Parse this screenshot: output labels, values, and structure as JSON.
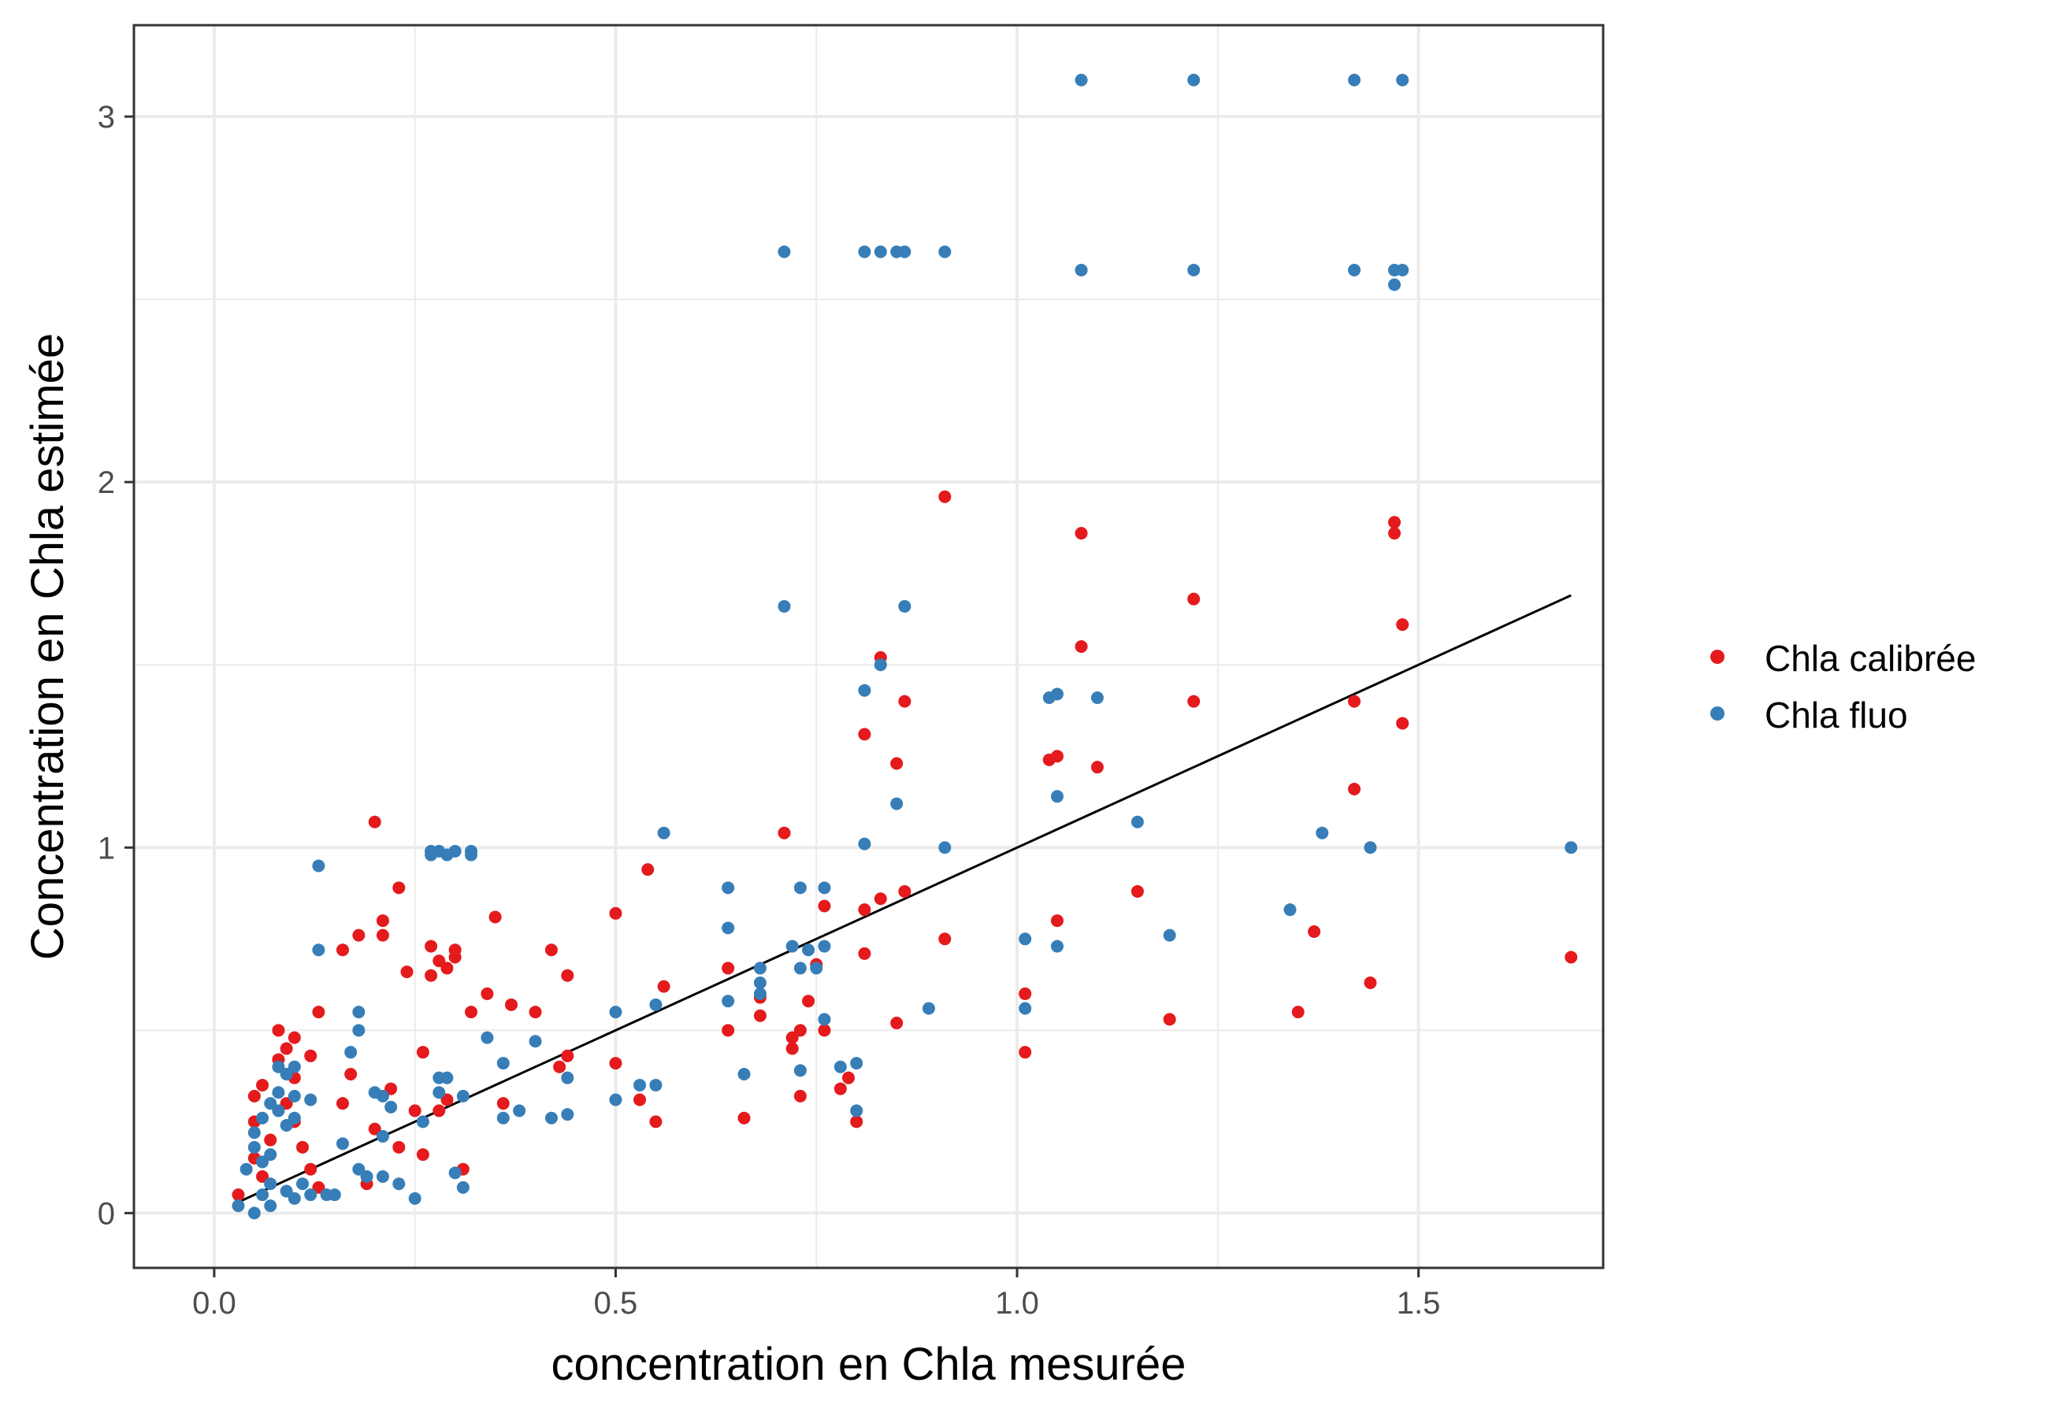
{
  "chart_data": {
    "type": "scatter",
    "xlabel": "concentration en Chla mesurée",
    "ylabel": "Concentration en Chla estimée",
    "xlim": [
      -0.1,
      1.73
    ],
    "ylim": [
      -0.15,
      3.25
    ],
    "x_ticks": [
      0.0,
      0.5,
      1.0,
      1.5
    ],
    "x_tick_labels": [
      "0.0",
      "0.5",
      "1.0",
      "1.5"
    ],
    "y_ticks": [
      0,
      1,
      2,
      3
    ],
    "y_tick_labels": [
      "0",
      "1",
      "2",
      "3"
    ],
    "grid": true,
    "legend_position": "right",
    "series": [
      {
        "name": "Chla calibrée",
        "color": "#e41a1c",
        "points": [
          [
            0.03,
            0.05
          ],
          [
            0.05,
            0.15
          ],
          [
            0.05,
            0.25
          ],
          [
            0.05,
            0.32
          ],
          [
            0.06,
            0.35
          ],
          [
            0.06,
            0.1
          ],
          [
            0.07,
            0.2
          ],
          [
            0.08,
            0.5
          ],
          [
            0.08,
            0.42
          ],
          [
            0.09,
            0.3
          ],
          [
            0.09,
            0.45
          ],
          [
            0.1,
            0.48
          ],
          [
            0.1,
            0.37
          ],
          [
            0.1,
            0.25
          ],
          [
            0.11,
            0.18
          ],
          [
            0.12,
            0.12
          ],
          [
            0.12,
            0.43
          ],
          [
            0.13,
            0.55
          ],
          [
            0.13,
            0.07
          ],
          [
            0.16,
            0.3
          ],
          [
            0.16,
            0.72
          ],
          [
            0.17,
            0.38
          ],
          [
            0.18,
            0.76
          ],
          [
            0.19,
            0.08
          ],
          [
            0.2,
            0.23
          ],
          [
            0.2,
            1.07
          ],
          [
            0.21,
            0.76
          ],
          [
            0.21,
            0.8
          ],
          [
            0.22,
            0.34
          ],
          [
            0.23,
            0.89
          ],
          [
            0.23,
            0.18
          ],
          [
            0.24,
            0.66
          ],
          [
            0.25,
            0.28
          ],
          [
            0.26,
            0.44
          ],
          [
            0.26,
            0.16
          ],
          [
            0.27,
            0.65
          ],
          [
            0.27,
            0.73
          ],
          [
            0.28,
            0.69
          ],
          [
            0.28,
            0.28
          ],
          [
            0.29,
            0.67
          ],
          [
            0.29,
            0.31
          ],
          [
            0.3,
            0.72
          ],
          [
            0.3,
            0.7
          ],
          [
            0.31,
            0.12
          ],
          [
            0.32,
            0.55
          ],
          [
            0.34,
            0.6
          ],
          [
            0.35,
            0.81
          ],
          [
            0.36,
            0.3
          ],
          [
            0.37,
            0.57
          ],
          [
            0.4,
            0.55
          ],
          [
            0.42,
            0.72
          ],
          [
            0.43,
            0.4
          ],
          [
            0.44,
            0.65
          ],
          [
            0.44,
            0.43
          ],
          [
            0.5,
            0.82
          ],
          [
            0.5,
            0.41
          ],
          [
            0.53,
            0.31
          ],
          [
            0.54,
            0.94
          ],
          [
            0.55,
            0.25
          ],
          [
            0.56,
            0.62
          ],
          [
            0.64,
            0.5
          ],
          [
            0.64,
            0.67
          ],
          [
            0.66,
            0.26
          ],
          [
            0.68,
            0.59
          ],
          [
            0.68,
            0.54
          ],
          [
            0.71,
            1.04
          ],
          [
            0.72,
            0.45
          ],
          [
            0.72,
            0.48
          ],
          [
            0.73,
            0.32
          ],
          [
            0.73,
            0.5
          ],
          [
            0.74,
            0.58
          ],
          [
            0.75,
            0.68
          ],
          [
            0.76,
            0.5
          ],
          [
            0.76,
            0.84
          ],
          [
            0.78,
            0.34
          ],
          [
            0.79,
            0.37
          ],
          [
            0.8,
            0.25
          ],
          [
            0.81,
            1.31
          ],
          [
            0.81,
            0.83
          ],
          [
            0.81,
            0.71
          ],
          [
            0.83,
            1.52
          ],
          [
            0.83,
            0.86
          ],
          [
            0.85,
            1.23
          ],
          [
            0.85,
            0.52
          ],
          [
            0.86,
            1.4
          ],
          [
            0.86,
            0.88
          ],
          [
            0.91,
            1.96
          ],
          [
            0.91,
            0.75
          ],
          [
            1.01,
            0.6
          ],
          [
            1.01,
            0.44
          ],
          [
            1.04,
            1.24
          ],
          [
            1.05,
            1.25
          ],
          [
            1.05,
            0.8
          ],
          [
            1.08,
            1.86
          ],
          [
            1.08,
            1.55
          ],
          [
            1.1,
            1.22
          ],
          [
            1.15,
            0.88
          ],
          [
            1.19,
            0.53
          ],
          [
            1.22,
            1.68
          ],
          [
            1.22,
            1.4
          ],
          [
            1.35,
            0.55
          ],
          [
            1.37,
            0.77
          ],
          [
            1.42,
            1.4
          ],
          [
            1.42,
            1.16
          ],
          [
            1.44,
            0.63
          ],
          [
            1.47,
            1.89
          ],
          [
            1.47,
            1.86
          ],
          [
            1.48,
            1.61
          ],
          [
            1.48,
            1.34
          ],
          [
            1.69,
            0.7
          ]
        ]
      },
      {
        "name": "Chla fluo",
        "color": "#377eb8",
        "points": [
          [
            0.03,
            0.02
          ],
          [
            0.04,
            0.12
          ],
          [
            0.05,
            0.0
          ],
          [
            0.05,
            0.18
          ],
          [
            0.05,
            0.22
          ],
          [
            0.06,
            0.14
          ],
          [
            0.06,
            0.26
          ],
          [
            0.06,
            0.05
          ],
          [
            0.07,
            0.08
          ],
          [
            0.07,
            0.16
          ],
          [
            0.07,
            0.3
          ],
          [
            0.07,
            0.02
          ],
          [
            0.08,
            0.4
          ],
          [
            0.08,
            0.33
          ],
          [
            0.08,
            0.28
          ],
          [
            0.09,
            0.38
          ],
          [
            0.09,
            0.24
          ],
          [
            0.09,
            0.06
          ],
          [
            0.1,
            0.4
          ],
          [
            0.1,
            0.32
          ],
          [
            0.1,
            0.26
          ],
          [
            0.1,
            0.04
          ],
          [
            0.11,
            0.08
          ],
          [
            0.12,
            0.05
          ],
          [
            0.12,
            0.31
          ],
          [
            0.13,
            0.95
          ],
          [
            0.13,
            0.72
          ],
          [
            0.14,
            0.05
          ],
          [
            0.15,
            0.05
          ],
          [
            0.16,
            0.19
          ],
          [
            0.17,
            0.44
          ],
          [
            0.18,
            0.55
          ],
          [
            0.18,
            0.5
          ],
          [
            0.18,
            0.12
          ],
          [
            0.19,
            0.1
          ],
          [
            0.2,
            0.33
          ],
          [
            0.21,
            0.32
          ],
          [
            0.21,
            0.21
          ],
          [
            0.21,
            0.1
          ],
          [
            0.22,
            0.29
          ],
          [
            0.23,
            0.08
          ],
          [
            0.25,
            0.04
          ],
          [
            0.26,
            0.25
          ],
          [
            0.27,
            0.98
          ],
          [
            0.27,
            0.99
          ],
          [
            0.28,
            0.37
          ],
          [
            0.28,
            0.33
          ],
          [
            0.28,
            0.99
          ],
          [
            0.29,
            0.98
          ],
          [
            0.29,
            0.37
          ],
          [
            0.3,
            0.99
          ],
          [
            0.3,
            0.11
          ],
          [
            0.31,
            0.32
          ],
          [
            0.31,
            0.07
          ],
          [
            0.32,
            0.98
          ],
          [
            0.32,
            0.99
          ],
          [
            0.34,
            0.48
          ],
          [
            0.36,
            0.26
          ],
          [
            0.36,
            0.41
          ],
          [
            0.38,
            0.28
          ],
          [
            0.4,
            0.47
          ],
          [
            0.42,
            0.26
          ],
          [
            0.44,
            0.27
          ],
          [
            0.44,
            0.37
          ],
          [
            0.5,
            0.55
          ],
          [
            0.5,
            0.31
          ],
          [
            0.53,
            0.35
          ],
          [
            0.55,
            0.35
          ],
          [
            0.55,
            0.57
          ],
          [
            0.56,
            1.04
          ],
          [
            0.64,
            0.89
          ],
          [
            0.64,
            0.78
          ],
          [
            0.64,
            0.58
          ],
          [
            0.66,
            0.38
          ],
          [
            0.68,
            0.63
          ],
          [
            0.68,
            0.67
          ],
          [
            0.68,
            0.6
          ],
          [
            0.71,
            2.63
          ],
          [
            0.71,
            1.66
          ],
          [
            0.72,
            0.73
          ],
          [
            0.73,
            0.89
          ],
          [
            0.73,
            0.67
          ],
          [
            0.73,
            0.39
          ],
          [
            0.74,
            0.72
          ],
          [
            0.75,
            0.67
          ],
          [
            0.76,
            0.89
          ],
          [
            0.76,
            0.73
          ],
          [
            0.76,
            0.53
          ],
          [
            0.78,
            0.4
          ],
          [
            0.8,
            0.41
          ],
          [
            0.8,
            0.28
          ],
          [
            0.81,
            2.63
          ],
          [
            0.81,
            1.43
          ],
          [
            0.81,
            1.01
          ],
          [
            0.83,
            2.63
          ],
          [
            0.83,
            1.5
          ],
          [
            0.85,
            2.63
          ],
          [
            0.85,
            1.12
          ],
          [
            0.86,
            2.63
          ],
          [
            0.86,
            1.66
          ],
          [
            0.89,
            0.56
          ],
          [
            0.91,
            2.63
          ],
          [
            0.91,
            1.0
          ],
          [
            1.01,
            0.75
          ],
          [
            1.01,
            0.56
          ],
          [
            1.04,
            1.41
          ],
          [
            1.05,
            1.42
          ],
          [
            1.05,
            1.14
          ],
          [
            1.05,
            0.73
          ],
          [
            1.08,
            3.1
          ],
          [
            1.08,
            2.58
          ],
          [
            1.1,
            1.41
          ],
          [
            1.15,
            1.07
          ],
          [
            1.19,
            0.76
          ],
          [
            1.22,
            3.1
          ],
          [
            1.22,
            2.58
          ],
          [
            1.34,
            0.83
          ],
          [
            1.38,
            1.04
          ],
          [
            1.42,
            3.1
          ],
          [
            1.42,
            2.58
          ],
          [
            1.44,
            1.0
          ],
          [
            1.47,
            2.54
          ],
          [
            1.47,
            2.58
          ],
          [
            1.48,
            3.1
          ],
          [
            1.48,
            2.58
          ],
          [
            1.69,
            1.0
          ]
        ]
      }
    ],
    "line": {
      "color": "#000000",
      "points": [
        [
          0.03,
          0.03
        ],
        [
          1.69,
          1.69
        ]
      ]
    }
  }
}
